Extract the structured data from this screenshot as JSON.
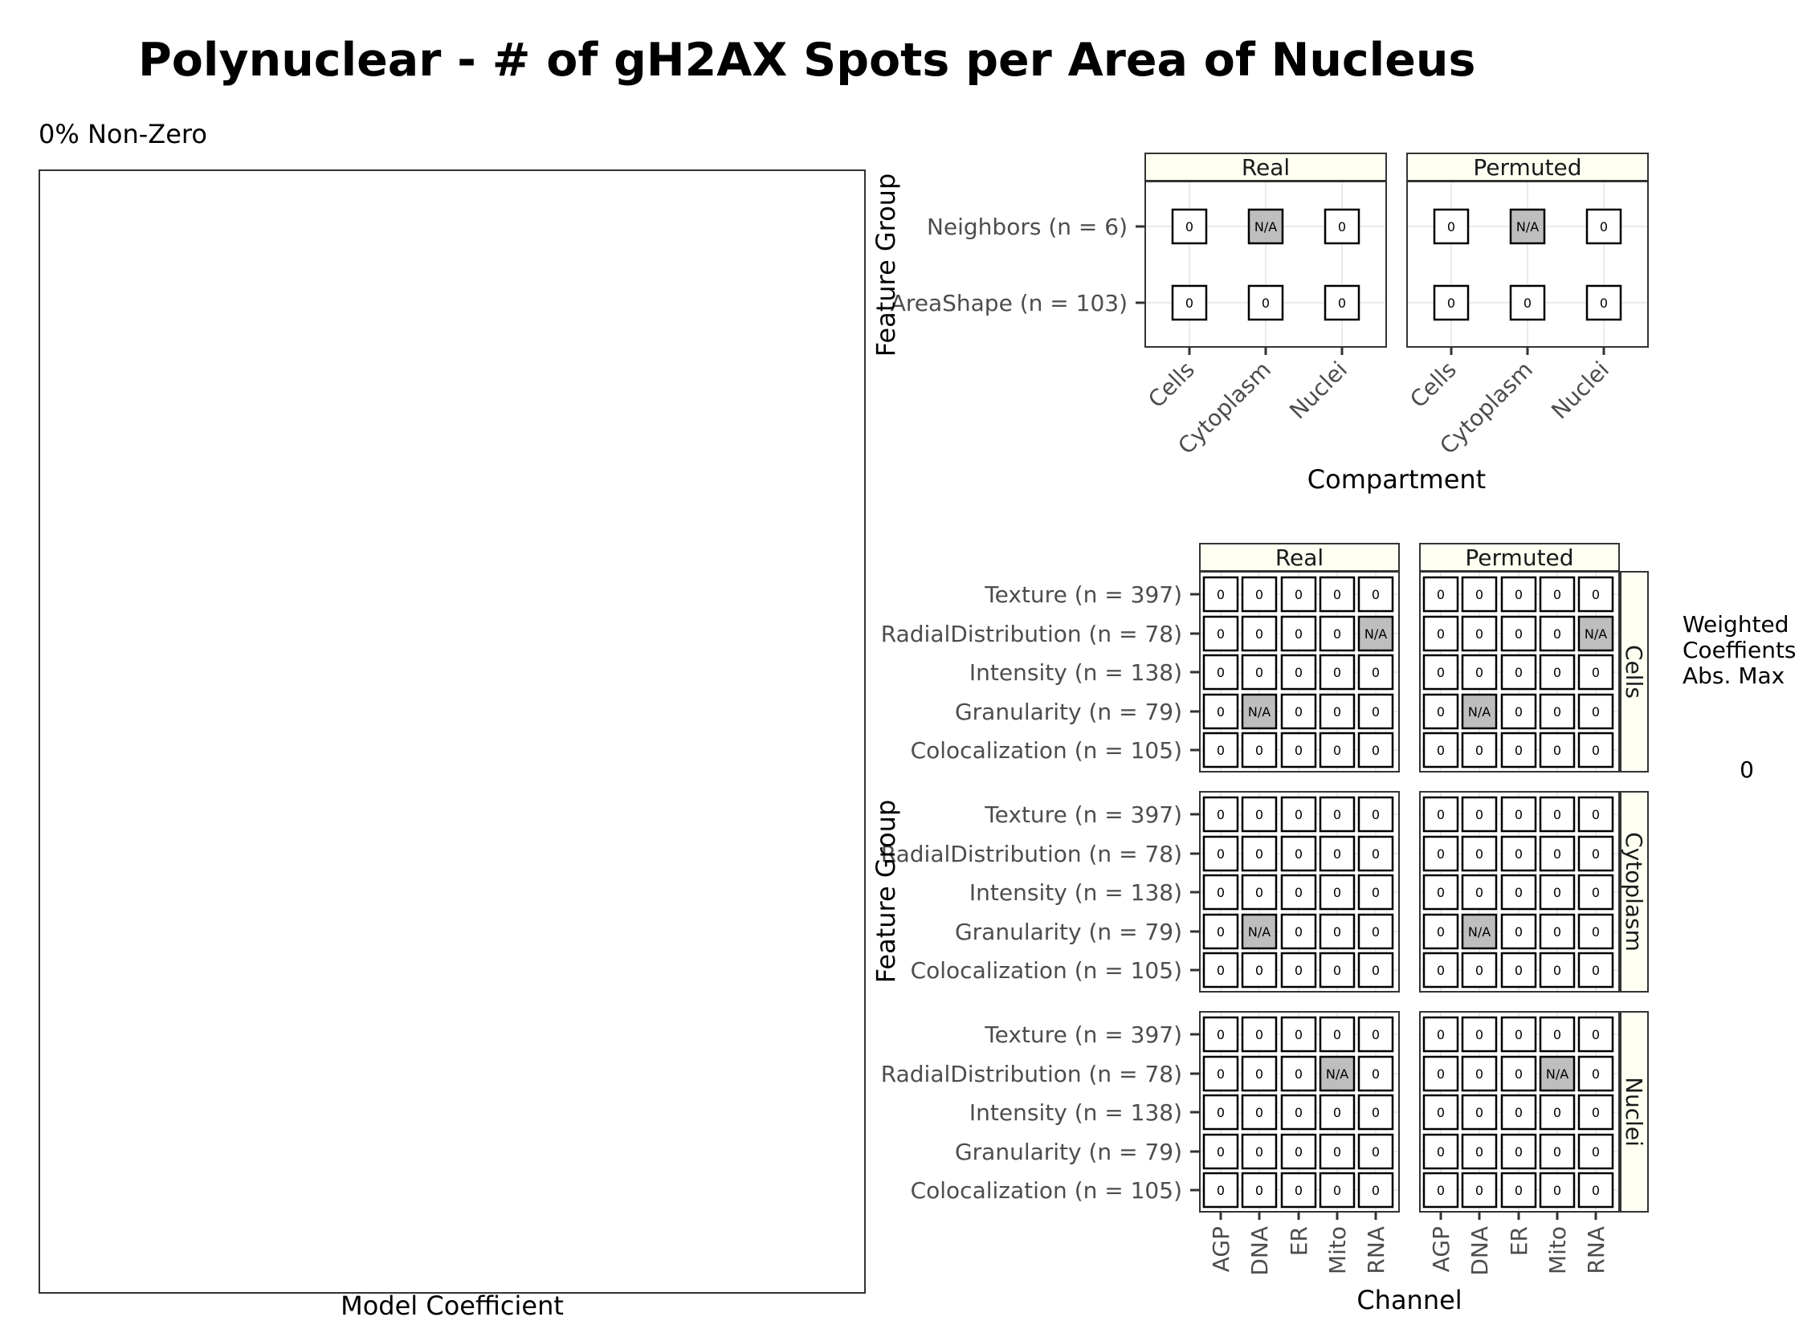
{
  "chart_data": [
    {
      "type": "scatter",
      "title": "Polynuclear - # of gH2AX Spots per Area of Nucleus",
      "subtitle": "0% Non-Zero",
      "xlabel": "Model Coefficient",
      "ylabel": "",
      "points": []
    },
    {
      "type": "heatmap",
      "xlabel": "Compartment",
      "ylabel": "Feature Group",
      "panels": [
        "Real",
        "Permuted"
      ],
      "x": [
        "Cells",
        "Cytoplasm",
        "Nuclei"
      ],
      "y": [
        "Neighbors (n = 6)",
        "AreaShape (n = 103)"
      ],
      "values": {
        "Real": [
          [
            "0",
            "N/A",
            "0"
          ],
          [
            "0",
            "0",
            "0"
          ]
        ],
        "Permuted": [
          [
            "0",
            "N/A",
            "0"
          ],
          [
            "0",
            "0",
            "0"
          ]
        ]
      }
    },
    {
      "type": "heatmap",
      "xlabel": "Channel",
      "ylabel": "Feature Group",
      "panels": [
        "Real",
        "Permuted"
      ],
      "rows": [
        "Cells",
        "Cytoplasm",
        "Nuclei"
      ],
      "x": [
        "AGP",
        "DNA",
        "ER",
        "Mito",
        "RNA"
      ],
      "y": [
        "Texture (n = 397)",
        "RadialDistribution (n = 78)",
        "Intensity (n = 138)",
        "Granularity (n = 79)",
        "Colocalization (n = 105)"
      ],
      "values": {
        "Cells": [
          [
            "0",
            "0",
            "0",
            "0",
            "0"
          ],
          [
            "0",
            "0",
            "0",
            "0",
            "N/A"
          ],
          [
            "0",
            "0",
            "0",
            "0",
            "0"
          ],
          [
            "0",
            "N/A",
            "0",
            "0",
            "0"
          ],
          [
            "0",
            "0",
            "0",
            "0",
            "0"
          ]
        ],
        "Cytoplasm": [
          [
            "0",
            "0",
            "0",
            "0",
            "0"
          ],
          [
            "0",
            "0",
            "0",
            "0",
            "0"
          ],
          [
            "0",
            "0",
            "0",
            "0",
            "0"
          ],
          [
            "0",
            "N/A",
            "0",
            "0",
            "0"
          ],
          [
            "0",
            "0",
            "0",
            "0",
            "0"
          ]
        ],
        "Nuclei": [
          [
            "0",
            "0",
            "0",
            "0",
            "0"
          ],
          [
            "0",
            "0",
            "0",
            "N/A",
            "0"
          ],
          [
            "0",
            "0",
            "0",
            "0",
            "0"
          ],
          [
            "0",
            "0",
            "0",
            "0",
            "0"
          ],
          [
            "0",
            "0",
            "0",
            "0",
            "0"
          ]
        ]
      },
      "legend": {
        "title_lines": [
          "Weighted",
          "Coeffients",
          "Abs. Max"
        ],
        "values": [
          "0"
        ]
      }
    }
  ],
  "colors": {
    "strip_fill": "#fffff2",
    "na_fill": "#bebebe",
    "cell_fill": "#ffffff",
    "grid": "#ebebeb",
    "panel_border": "#333333"
  }
}
